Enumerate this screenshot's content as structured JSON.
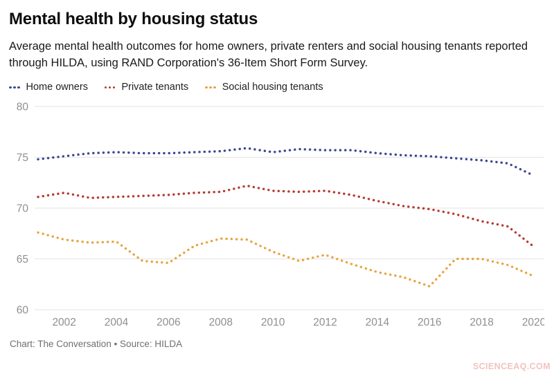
{
  "header": {
    "title": "Mental health by housing status",
    "subtitle": "Average mental health outcomes for home owners, private renters and social housing tenants reported through HILDA, using RAND Corporation's 36-Item Short Form Survey."
  },
  "legend": {
    "items": [
      {
        "label": "Home owners",
        "color": "#3a4792"
      },
      {
        "label": "Private tenants",
        "color": "#b63930"
      },
      {
        "label": "Social housing tenants",
        "color": "#e8a33d"
      }
    ]
  },
  "footer": {
    "credit": "Chart: The Conversation • Source: HILDA"
  },
  "watermark": "SCIENCEAQ.COM",
  "chart_data": {
    "type": "line",
    "line_style": "dotted",
    "title": "Mental health by housing status",
    "xlabel": "",
    "ylabel": "",
    "x": [
      2001,
      2002,
      2003,
      2004,
      2005,
      2006,
      2007,
      2008,
      2009,
      2010,
      2011,
      2012,
      2013,
      2014,
      2015,
      2016,
      2017,
      2018,
      2019,
      2020
    ],
    "series": [
      {
        "name": "Home owners",
        "color": "#3a4792",
        "values": [
          74.8,
          75.1,
          75.4,
          75.5,
          75.4,
          75.4,
          75.5,
          75.6,
          75.9,
          75.5,
          75.8,
          75.7,
          75.7,
          75.4,
          75.2,
          75.1,
          74.9,
          74.7,
          74.4,
          73.2
        ]
      },
      {
        "name": "Private tenants",
        "color": "#b63930",
        "values": [
          71.1,
          71.5,
          71.0,
          71.1,
          71.2,
          71.3,
          71.5,
          71.6,
          72.2,
          71.7,
          71.6,
          71.7,
          71.3,
          70.7,
          70.2,
          69.9,
          69.4,
          68.7,
          68.2,
          66.2
        ]
      },
      {
        "name": "Social housing tenants",
        "color": "#e8a33d",
        "values": [
          67.6,
          66.9,
          66.6,
          66.7,
          64.8,
          64.6,
          66.3,
          67.0,
          66.9,
          65.7,
          64.8,
          65.4,
          64.5,
          63.7,
          63.2,
          62.3,
          65.0,
          65.0,
          64.4,
          63.3
        ]
      }
    ],
    "yticks": [
      80,
      75,
      70,
      65,
      60
    ],
    "xticks": [
      2002,
      2004,
      2006,
      2008,
      2010,
      2012,
      2014,
      2016,
      2018,
      2020
    ],
    "ylim": [
      59.5,
      81
    ],
    "xlim": [
      2001,
      2020
    ],
    "grid": "horizontal",
    "legend_position": "top",
    "tick_color": "#8f8f8f",
    "gridline_color": "#e3e3e3"
  }
}
